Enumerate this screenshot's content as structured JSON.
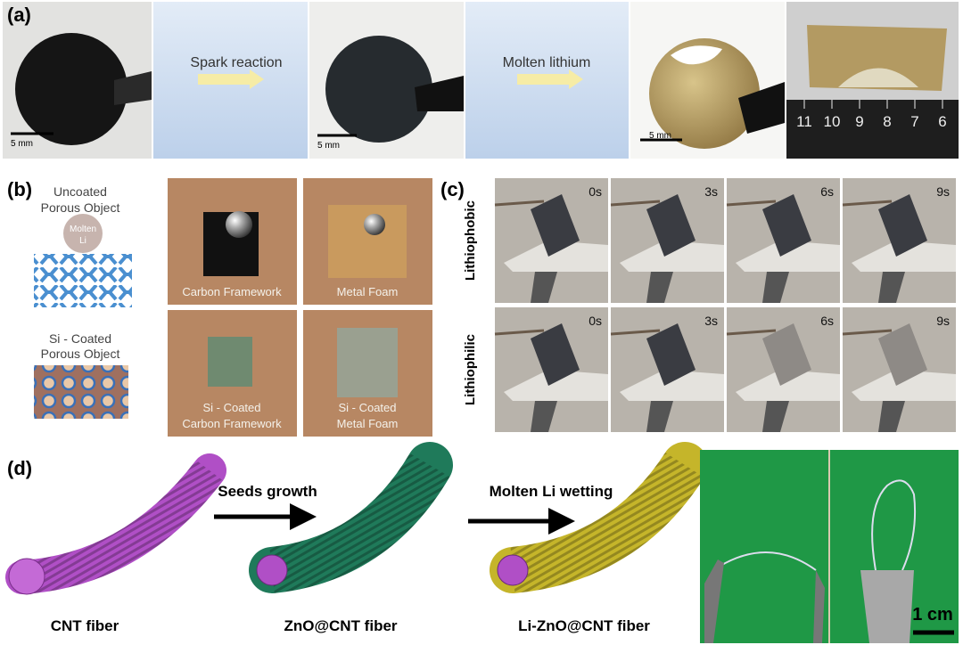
{
  "panel_a": {
    "label": "(a)",
    "step_1": "Spark reaction",
    "step_2": "Molten lithium",
    "scale_bar": "5 mm",
    "ruler": [
      11,
      10,
      9,
      8,
      7,
      6
    ]
  },
  "panel_b": {
    "label": "(b)",
    "uncoated": [
      "Uncoated",
      "Porous Object"
    ],
    "droplet": [
      "Molten",
      "Li"
    ],
    "coated": [
      "Si - Coated",
      "Porous Object"
    ],
    "photos": [
      [
        "Carbon Framework"
      ],
      [
        "Metal Foam"
      ],
      [
        "Si - Coated",
        "Carbon Framework"
      ],
      [
        "Si - Coated",
        "Metal Foam"
      ]
    ]
  },
  "panel_c": {
    "label": "(c)",
    "rows": [
      "Lithiophobic",
      "Lithiophilic"
    ],
    "times": [
      "0s",
      "3s",
      "6s",
      "9s"
    ]
  },
  "panel_d": {
    "label": "(d)",
    "arrow_1": "Seeds growth",
    "arrow_2": "Molten Li wetting",
    "fibers": [
      "CNT fiber",
      "ZnO@CNT fiber",
      "Li-ZnO@CNT fiber"
    ],
    "scale_bar": "1 cm"
  }
}
